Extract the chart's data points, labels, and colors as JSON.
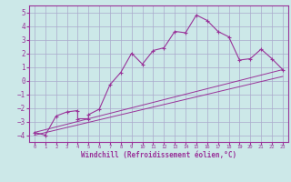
{
  "xlabel": "Windchill (Refroidissement éolien,°C)",
  "background_color": "#cce8e8",
  "grid_color": "#aaaacc",
  "line_color": "#993399",
  "spine_color": "#993399",
  "xlim": [
    -0.5,
    23.5
  ],
  "ylim": [
    -4.5,
    5.5
  ],
  "xticks": [
    0,
    1,
    2,
    3,
    4,
    5,
    6,
    7,
    8,
    9,
    10,
    11,
    12,
    13,
    14,
    15,
    16,
    17,
    18,
    19,
    20,
    21,
    22,
    23
  ],
  "yticks": [
    -4,
    -3,
    -2,
    -1,
    0,
    1,
    2,
    3,
    4,
    5
  ],
  "series1_x": [
    0,
    1,
    2,
    3,
    4,
    4,
    5,
    5,
    6,
    7,
    8,
    9,
    10,
    11,
    12,
    13,
    14,
    15,
    16,
    17,
    18,
    19,
    20,
    21,
    22,
    23
  ],
  "series1_y": [
    -3.8,
    -4.0,
    -2.6,
    -2.3,
    -2.2,
    -2.8,
    -2.8,
    -2.5,
    -2.1,
    -0.3,
    0.6,
    2.0,
    1.2,
    2.2,
    2.4,
    3.6,
    3.5,
    4.8,
    4.4,
    3.6,
    3.2,
    1.5,
    1.6,
    2.3,
    1.6,
    0.8
  ],
  "series2_x": [
    0,
    23
  ],
  "series2_y": [
    -3.8,
    0.8
  ],
  "series3_x": [
    0,
    23
  ],
  "series3_y": [
    -4.0,
    0.3
  ]
}
